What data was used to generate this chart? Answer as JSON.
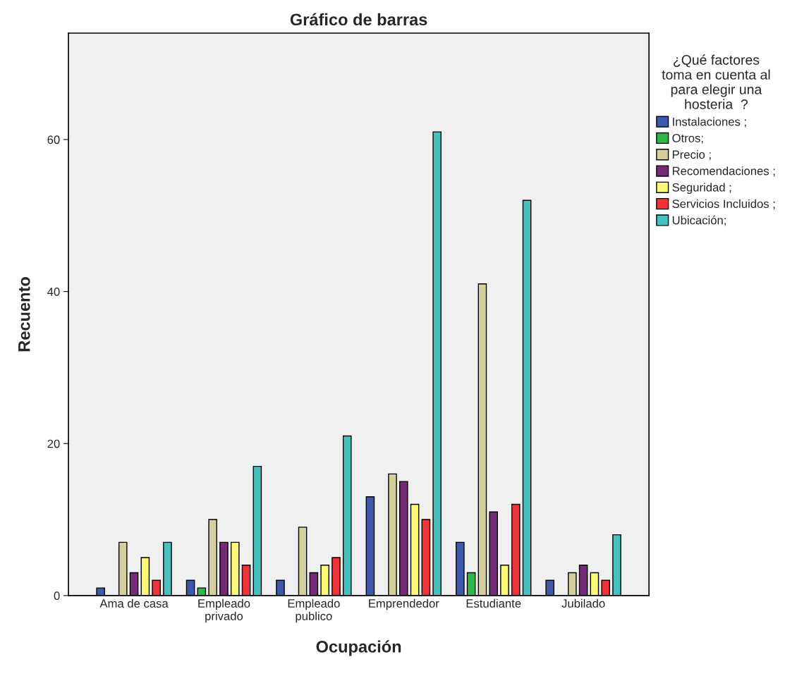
{
  "chart_data": {
    "type": "bar",
    "title": "Gráfico de barras",
    "xlabel": "Ocupación",
    "ylabel": "Recuento",
    "legend_title": "¿Qué factores\ntoma en cuenta al\npara elegir una\nhosteria  ?",
    "categories": [
      "Ama de casa",
      "Empleado\nprivado",
      "Empleado\npublico",
      "Emprendedor",
      "Estudiante",
      "Jubilado"
    ],
    "series": [
      {
        "name": "Instalaciones ;",
        "color": "#3e58ac",
        "values": [
          1,
          2,
          2,
          13,
          7,
          2
        ]
      },
      {
        "name": "Otros;",
        "color": "#2eb848",
        "values": [
          null,
          1,
          null,
          null,
          3,
          null
        ]
      },
      {
        "name": "Precio ;",
        "color": "#d4cf9c",
        "values": [
          7,
          10,
          9,
          16,
          41,
          3
        ]
      },
      {
        "name": "Recomendaciones ;",
        "color": "#742a76",
        "values": [
          3,
          7,
          3,
          15,
          11,
          4
        ]
      },
      {
        "name": "Seguridad ;",
        "color": "#fbf873",
        "values": [
          5,
          7,
          4,
          12,
          4,
          3
        ]
      },
      {
        "name": "Servicios Incluidos ;",
        "color": "#ef3338",
        "values": [
          2,
          4,
          5,
          10,
          12,
          2
        ]
      },
      {
        "name": "Ubicación;",
        "color": "#48c0c0",
        "values": [
          7,
          17,
          21,
          61,
          52,
          8
        ]
      }
    ],
    "ylim": [
      0,
      74
    ],
    "yticks": [
      0,
      20,
      40,
      60
    ],
    "grid": false,
    "legend": "right"
  }
}
